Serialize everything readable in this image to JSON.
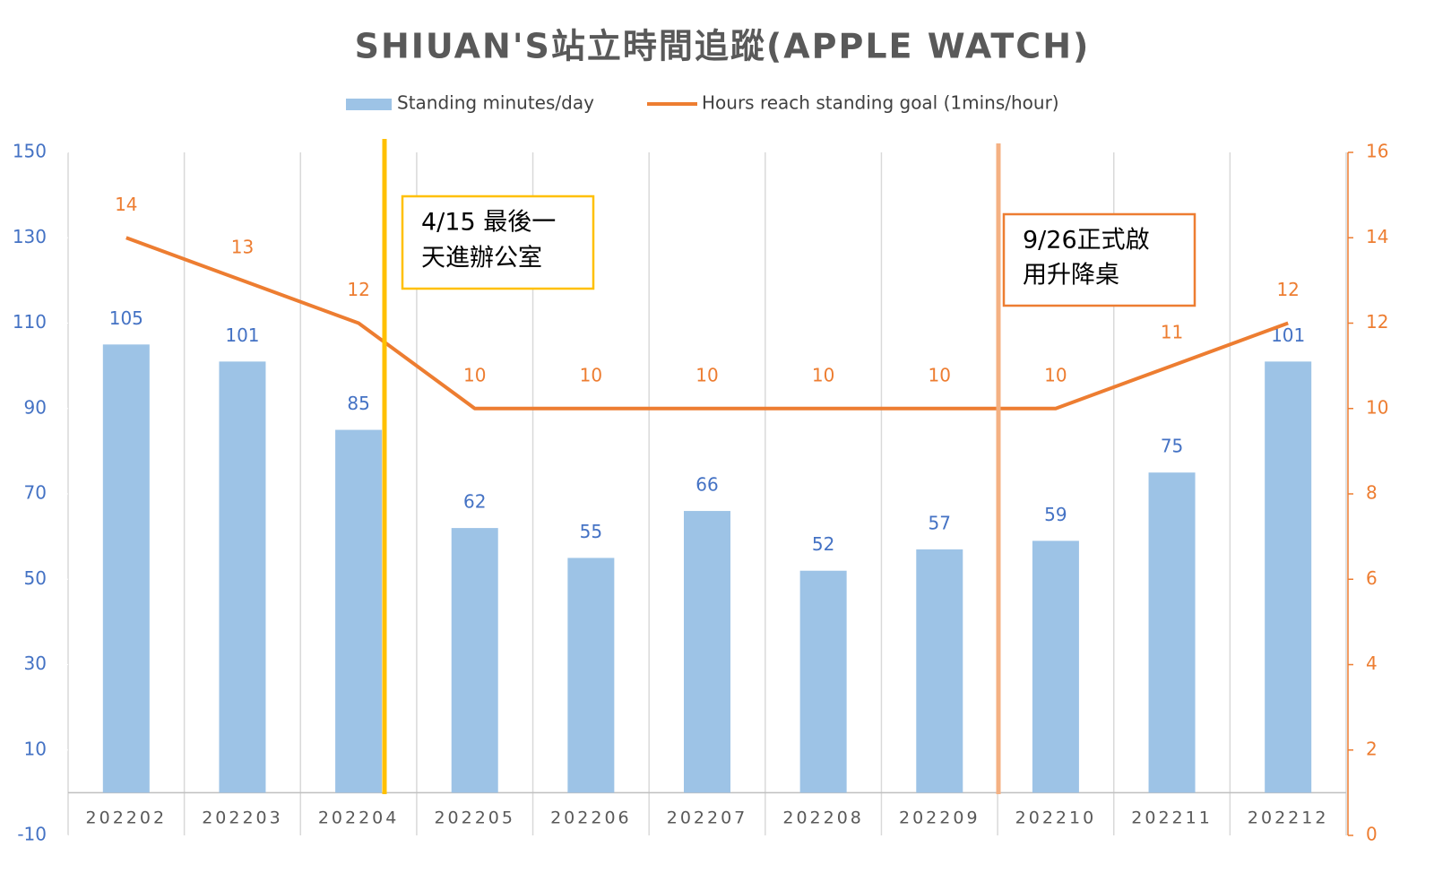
{
  "chart_data": {
    "type": "bar-line",
    "title": "SHIUAN'S站立時間追蹤(APPLE WATCH)",
    "categories": [
      "202202",
      "202203",
      "202204",
      "202205",
      "202206",
      "202207",
      "202208",
      "202209",
      "202210",
      "202211",
      "202212"
    ],
    "series": [
      {
        "name": "Standing minutes/day",
        "type": "bar",
        "axis": "y",
        "color": "#9dc3e6",
        "label_color": "#4472c4",
        "values": [
          105,
          101,
          85,
          62,
          55,
          66,
          52,
          57,
          59,
          75,
          101
        ]
      },
      {
        "name": "Hours reach standing goal (1mins/hour)",
        "type": "line",
        "axis": "y2",
        "color": "#ed7d31",
        "label_color": "#ed7d31",
        "values": [
          14,
          13,
          12,
          10,
          10,
          10,
          10,
          10,
          10,
          11,
          12
        ]
      }
    ],
    "ylim": [
      -10,
      150
    ],
    "yticks": [
      -10,
      10,
      30,
      50,
      70,
      90,
      110,
      130,
      150
    ],
    "y2lim": [
      0,
      16
    ],
    "y2ticks": [
      0,
      2,
      4,
      6,
      8,
      10,
      12,
      14,
      16
    ],
    "annotations": [
      {
        "lines": [
          "4/15 最後一",
          "天進辦公室"
        ]
      },
      {
        "lines": [
          "9/26正式啟",
          "用升降桌"
        ]
      }
    ]
  }
}
